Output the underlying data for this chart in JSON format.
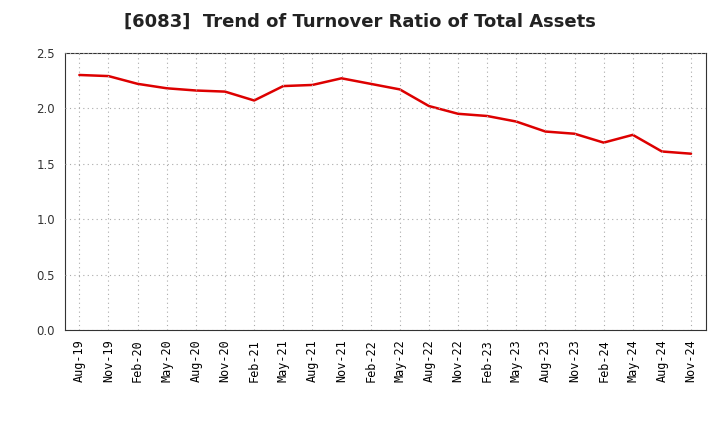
{
  "title": "[6083]  Trend of Turnover Ratio of Total Assets",
  "x_labels": [
    "Aug-19",
    "Nov-19",
    "Feb-20",
    "May-20",
    "Aug-20",
    "Nov-20",
    "Feb-21",
    "May-21",
    "Aug-21",
    "Nov-21",
    "Feb-22",
    "May-22",
    "Aug-22",
    "Nov-22",
    "Feb-23",
    "May-23",
    "Aug-23",
    "Nov-23",
    "Feb-24",
    "May-24",
    "Aug-24",
    "Nov-24"
  ],
  "y_values": [
    2.3,
    2.29,
    2.22,
    2.18,
    2.16,
    2.15,
    2.07,
    2.2,
    2.21,
    2.27,
    2.22,
    2.17,
    2.02,
    1.95,
    1.93,
    1.88,
    1.79,
    1.77,
    1.69,
    1.76,
    1.61,
    1.59
  ],
  "line_color": "#dd0000",
  "line_width": 1.8,
  "ylim": [
    0.0,
    2.5
  ],
  "yticks": [
    0.0,
    0.5,
    1.0,
    1.5,
    2.0,
    2.5
  ],
  "grid_color": "#aaaaaa",
  "bg_color": "#ffffff",
  "title_fontsize": 13,
  "tick_fontsize": 8.5
}
